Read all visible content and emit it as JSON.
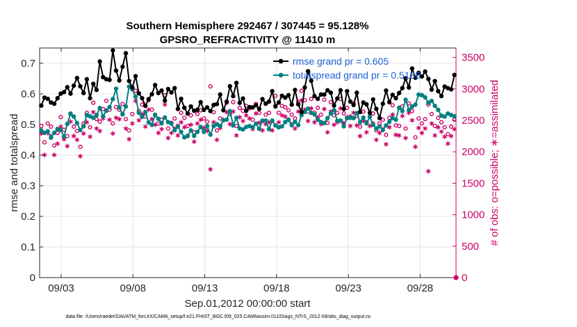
{
  "chart_data": {
    "type": "line",
    "title": "Southern Hemisphere 292467 / 307445 = 95.128%",
    "subtitle": "GPSRO_REFRACTIVITY @ 11410 m",
    "xlabel": "Sep.01,2012 00:00:00 start",
    "ylabel": "rmse and totalspread",
    "ylabel_right": "# of obs: o=possible; ∗=assimilated",
    "footnote": "data file: /Users/raeder/DAI/ATM_forcXX/CAM6_setup/f.e21.FHIST_BGC.f09_025.CAM6assim.011/Diags_NTrS_2012-09/obs_diag_output.nc",
    "x_range_days": [
      1.5,
      30.5
    ],
    "x_ticks": [
      3,
      8,
      13,
      18,
      23,
      28
    ],
    "x_tick_labels": [
      "09/03",
      "09/08",
      "09/13",
      "09/18",
      "09/23",
      "09/28"
    ],
    "ylim": [
      0,
      0.75
    ],
    "y_ticks": [
      0,
      0.1,
      0.2,
      0.3,
      0.4,
      0.5,
      0.6,
      0.7
    ],
    "y_tick_labels": [
      "0",
      "0.1",
      "0.2",
      "0.3",
      "0.4",
      "0.5",
      "0.6",
      "0.7"
    ],
    "ylim_right": [
      0,
      3650
    ],
    "y_ticks_right": [
      0,
      500,
      1000,
      1500,
      2000,
      2500,
      3000,
      3500
    ],
    "y_tick_labels_right": [
      "0",
      "500",
      "1000",
      "1500",
      "2000",
      "2500",
      "3000",
      "3500"
    ],
    "grid": true,
    "legend_position": "top-right",
    "series": [
      {
        "name": "rmse grand pr = 0.605",
        "color": "#000000",
        "marker": "filled-circle",
        "axis": "left",
        "values": [
          0.562,
          0.588,
          0.584,
          0.572,
          0.568,
          0.586,
          0.601,
          0.606,
          0.622,
          0.601,
          0.627,
          0.652,
          0.625,
          0.603,
          0.648,
          0.586,
          0.633,
          0.613,
          0.706,
          0.655,
          0.648,
          0.646,
          0.742,
          0.676,
          0.644,
          0.689,
          0.733,
          0.642,
          0.621,
          0.658,
          0.602,
          0.586,
          0.561,
          0.583,
          0.599,
          0.629,
          0.603,
          0.611,
          0.578,
          0.616,
          0.605,
          0.619,
          0.551,
          0.584,
          0.555,
          0.536,
          0.559,
          0.545,
          0.548,
          0.573,
          0.548,
          0.556,
          0.544,
          0.564,
          0.567,
          0.598,
          0.547,
          0.575,
          0.625,
          0.593,
          0.636,
          0.571,
          0.585,
          0.545,
          0.557,
          0.556,
          0.563,
          0.551,
          0.583,
          0.568,
          0.575,
          0.609,
          0.559,
          0.572,
          0.594,
          0.588,
          0.596,
          0.565,
          0.613,
          0.566,
          0.541,
          0.621,
          0.674,
          0.643,
          0.593,
          0.584,
          0.598,
          0.598,
          0.612,
          0.604,
          0.562,
          0.585,
          0.612,
          0.551,
          0.609,
          0.575,
          0.564,
          0.604,
          0.541,
          0.572,
          0.566,
          0.538,
          0.582,
          0.551,
          0.521,
          0.568,
          0.611,
          0.573,
          0.597,
          0.586,
          0.603,
          0.619,
          0.651,
          0.621,
          0.683,
          0.653,
          0.669,
          0.657,
          0.673,
          0.649,
          0.614,
          0.642,
          0.609,
          0.593,
          0.624,
          0.619,
          0.615,
          0.662
        ]
      },
      {
        "name": "totalspread grand pr = 0.5188",
        "color": "#008080",
        "marker": "filled-circle",
        "axis": "left",
        "values": [
          0.481,
          0.473,
          0.478,
          0.457,
          0.473,
          0.486,
          0.482,
          0.461,
          0.502,
          0.536,
          0.526,
          0.505,
          0.482,
          0.494,
          0.531,
          0.527,
          0.522,
          0.531,
          0.554,
          0.527,
          0.545,
          0.557,
          0.583,
          0.617,
          0.556,
          0.533,
          0.559,
          0.624,
          0.615,
          0.591,
          0.538,
          0.525,
          0.541,
          0.507,
          0.499,
          0.531,
          0.519,
          0.504,
          0.523,
          0.508,
          0.503,
          0.481,
          0.493,
          0.476,
          0.458,
          0.463,
          0.481,
          0.463,
          0.476,
          0.492,
          0.476,
          0.495,
          0.467,
          0.495,
          0.501,
          0.495,
          0.514,
          0.516,
          0.544,
          0.497,
          0.522,
          0.487,
          0.484,
          0.492,
          0.495,
          0.491,
          0.503,
          0.486,
          0.513,
          0.513,
          0.485,
          0.513,
          0.497,
          0.491,
          0.494,
          0.508,
          0.516,
          0.498,
          0.509,
          0.498,
          0.531,
          0.541,
          0.552,
          0.538,
          0.533,
          0.516,
          0.508,
          0.505,
          0.521,
          0.536,
          0.547,
          0.512,
          0.513,
          0.494,
          0.521,
          0.522,
          0.521,
          0.537,
          0.508,
          0.523,
          0.504,
          0.525,
          0.499,
          0.487,
          0.494,
          0.482,
          0.497,
          0.509,
          0.521,
          0.516,
          0.555,
          0.544,
          0.581,
          0.548,
          0.559,
          0.565,
          0.598,
          0.596,
          0.589,
          0.571,
          0.577,
          0.561,
          0.548,
          0.529,
          0.526,
          0.536,
          0.531,
          0.527
        ]
      },
      {
        "name": "possible",
        "color": "#cc0066",
        "marker": "open-circle",
        "axis": "right",
        "values": [
          2410,
          2150,
          2450,
          2400,
          2100,
          2300,
          2550,
          2350,
          2250,
          2600,
          2400,
          2330,
          2080,
          2450,
          2620,
          2390,
          2780,
          2520,
          2480,
          2680,
          2810,
          2670,
          2450,
          2710,
          2670,
          2760,
          2520,
          2340,
          2600,
          2970,
          2650,
          2750,
          2560,
          2820,
          2670,
          2590,
          2450,
          2510,
          2900,
          2370,
          2460,
          2530,
          2410,
          2620,
          2540,
          2410,
          2580,
          2310,
          2600,
          2660,
          2530,
          2480,
          3040,
          2630,
          2340,
          2530,
          2660,
          2780,
          2600,
          2790,
          2410,
          2700,
          2650,
          2730,
          2690,
          2510,
          2760,
          2620,
          2490,
          2590,
          2620,
          2490,
          2890,
          2620,
          2730,
          2710,
          2660,
          2590,
          2530,
          2790,
          2970,
          2820,
          2640,
          2840,
          2620,
          2700,
          2590,
          2830,
          2460,
          2790,
          2580,
          2620,
          2840,
          2610,
          2700,
          2560,
          2770,
          2570,
          2400,
          2640,
          2470,
          2560,
          2610,
          2340,
          2450,
          2510,
          2270,
          2540,
          2740,
          2420,
          2410,
          2720,
          2370,
          2770,
          2650,
          2230,
          2530,
          2450,
          2520,
          2750,
          2600,
          2410,
          2540,
          2470,
          2390,
          2280,
          2400,
          2510
        ]
      },
      {
        "name": "assimilated",
        "color": "#cc0066",
        "marker": "asterisk",
        "axis": "right",
        "values": [
          2290,
          1950,
          2300,
          2250,
          1950,
          2130,
          2400,
          2200,
          2090,
          2480,
          2250,
          2190,
          1930,
          2290,
          2470,
          2240,
          2630,
          2370,
          2330,
          2530,
          2660,
          2510,
          2290,
          2540,
          2520,
          2600,
          2370,
          2200,
          2450,
          2810,
          2500,
          2600,
          2400,
          2670,
          2520,
          2430,
          2300,
          2360,
          2750,
          2220,
          2300,
          2370,
          2260,
          2470,
          2390,
          2250,
          2430,
          2160,
          2450,
          2510,
          2380,
          2330,
          1720,
          2470,
          2190,
          2380,
          2510,
          2630,
          2440,
          2640,
          2260,
          2550,
          2490,
          2580,
          2530,
          2360,
          2610,
          2460,
          2340,
          2440,
          2470,
          2340,
          2730,
          2470,
          2580,
          2560,
          2510,
          2440,
          2370,
          2640,
          2820,
          2670,
          2490,
          2690,
          2470,
          2550,
          2440,
          2680,
          2310,
          2640,
          2430,
          2470,
          2690,
          2460,
          2550,
          2410,
          2620,
          2420,
          2250,
          2490,
          2310,
          2410,
          2450,
          2190,
          2300,
          2360,
          2120,
          2390,
          2590,
          2270,
          2260,
          2570,
          2220,
          2620,
          2500,
          2080,
          2380,
          2300,
          2370,
          1690,
          2450,
          2260,
          2390,
          2320,
          2240,
          2130,
          2250,
          2360
        ]
      }
    ]
  }
}
